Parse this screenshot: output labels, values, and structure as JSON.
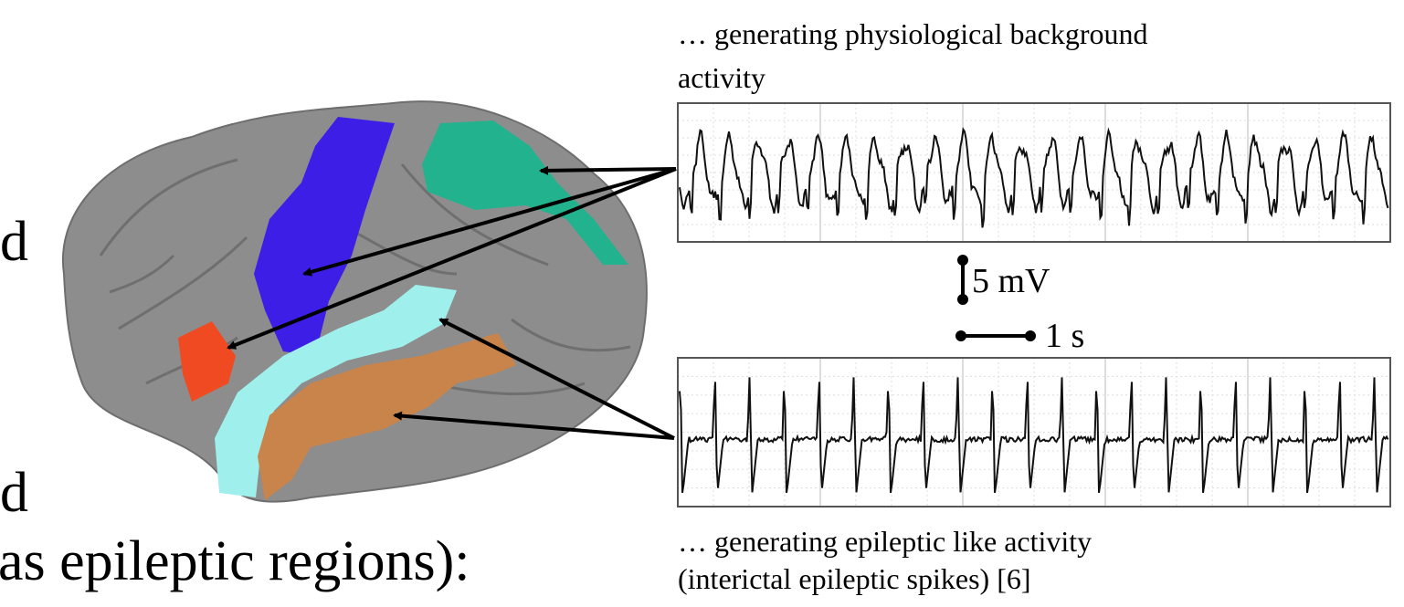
{
  "slide": {
    "left_text": {
      "line1": "d",
      "line2": "d",
      "line3": "as epileptic regions):"
    },
    "top_caption": {
      "line1": "… generating physiological background",
      "line2": "activity"
    },
    "scale": {
      "voltage": "5 mV",
      "time": "1 s"
    },
    "bottom_caption": {
      "line1": "… generating epileptic like activity",
      "line2": "(interictal epileptic spikes) [6]"
    }
  }
}
